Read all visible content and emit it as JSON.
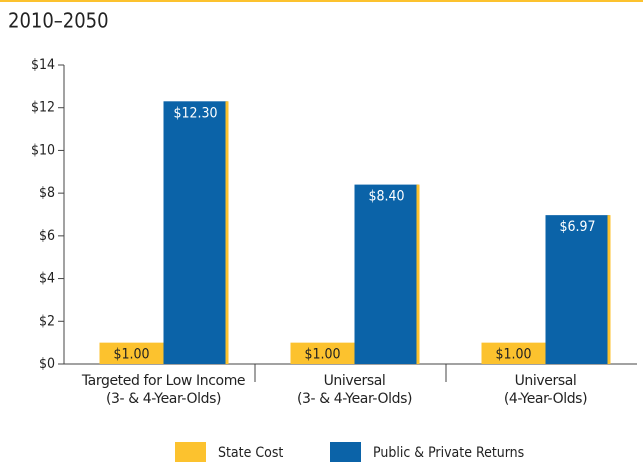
{
  "chart_data": {
    "type": "bar",
    "title": "2010–2050",
    "categories": [
      "Targeted for Low Income\n(3- & 4-Year-Olds)",
      "Universal\n(3- & 4-Year-Olds)",
      "Universal\n(4-Year-Olds)"
    ],
    "series": [
      {
        "name": "State Cost",
        "color": "#fcc22e",
        "values": [
          1.0,
          1.0,
          1.0
        ],
        "value_labels": [
          "$1.00",
          "$1.00",
          "$1.00"
        ]
      },
      {
        "name": "Public & Private Returns",
        "color": "#0b63a8",
        "values": [
          12.3,
          8.4,
          6.97
        ],
        "value_labels": [
          "$12.30",
          "$8.40",
          "$6.97"
        ]
      }
    ],
    "ylim": [
      0,
      14
    ],
    "yticks": [
      {
        "value": 0,
        "label": "$0"
      },
      {
        "value": 2,
        "label": "$2"
      },
      {
        "value": 4,
        "label": "$4"
      },
      {
        "value": 6,
        "label": "$6"
      },
      {
        "value": 8,
        "label": "$8"
      },
      {
        "value": 10,
        "label": "$10"
      },
      {
        "value": 12,
        "label": "$12"
      },
      {
        "value": 14,
        "label": "$14"
      }
    ],
    "legend": "bottom"
  }
}
